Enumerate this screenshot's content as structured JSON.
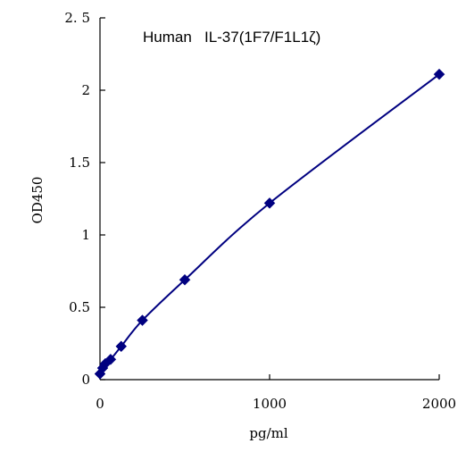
{
  "chart_data": {
    "type": "line",
    "title": "Human   IL-37(1F7/F1L1ζ)",
    "xlabel": "pg/ml",
    "ylabel": "OD450",
    "xlim": [
      0,
      2000
    ],
    "ylim": [
      0,
      2.5
    ],
    "x_ticks": [
      0,
      1000,
      2000
    ],
    "x_tick_labels": [
      "0",
      "1000",
      "2000"
    ],
    "y_ticks": [
      0,
      0.5,
      1,
      1.5,
      2,
      2.5
    ],
    "y_tick_labels": [
      "0",
      "0.5",
      "1",
      "1.5",
      "2",
      "2. 5"
    ],
    "grid": false,
    "series": [
      {
        "color": "#000080",
        "marker": "diamond",
        "smooth": true,
        "x": [
          0,
          15.6,
          31.25,
          62.5,
          125,
          250,
          500,
          1000,
          2000
        ],
        "y": [
          0.04,
          0.08,
          0.11,
          0.14,
          0.23,
          0.41,
          0.69,
          1.22,
          2.11
        ]
      }
    ]
  }
}
